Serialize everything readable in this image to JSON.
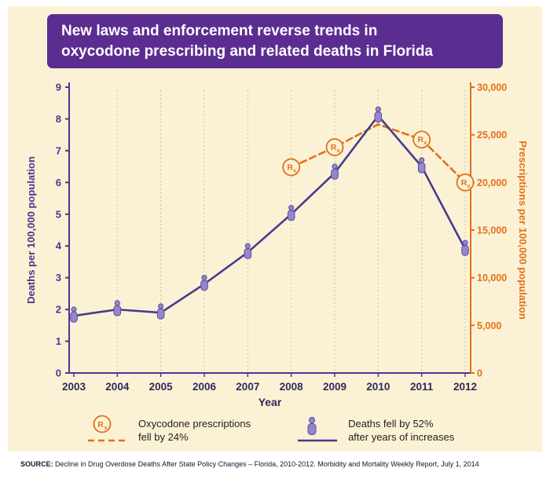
{
  "title": {
    "line1": "New laws and enforcement reverse trends in",
    "line2": "oxycodone prescribing and related deaths in Florida"
  },
  "chart_data": {
    "type": "line",
    "x": [
      2003,
      2004,
      2005,
      2006,
      2007,
      2008,
      2009,
      2010,
      2011,
      2012
    ],
    "xlabel": "Year",
    "left_axis": {
      "label": "Deaths per 100,000 population",
      "min": 0,
      "max": 9,
      "tick_step": 1
    },
    "right_axis": {
      "label": "Prescriptions per 100,000 population",
      "min": 0,
      "max": 30000,
      "tick_step": 5000
    },
    "grid": "vertical-dotted",
    "series": [
      {
        "name": "Deaths per 100,000 population",
        "axis": "left",
        "line": "solid",
        "marker": "person",
        "values": [
          1.8,
          2.0,
          1.9,
          2.8,
          3.8,
          5.0,
          6.3,
          8.1,
          6.5,
          3.9
        ]
      },
      {
        "name": "Oxycodone prescriptions per 100,000 population",
        "axis": "right",
        "line": "dashed",
        "marker": "rx",
        "values": [
          null,
          null,
          null,
          null,
          null,
          21600,
          23700,
          26100,
          24500,
          20000
        ],
        "marker_years": [
          2008,
          2009,
          2011,
          2012
        ]
      }
    ]
  },
  "legend": {
    "prescriptions": {
      "line1": "Oxycodone prescriptions",
      "line2": "fell by 24%"
    },
    "deaths": {
      "line1": "Deaths fell by 52%",
      "line2": "after years of increases"
    }
  },
  "source": {
    "label": "SOURCE:",
    "text": " Decline in Drug Overdose Deaths After State Policy Changes – Florida, 2010-2012. Morbidity and Mortality Weekly Report, July 1, 2014"
  },
  "colors": {
    "cream": "#FBF2D5",
    "purple": "#5C2D91",
    "orange": "#E2701B",
    "line_purple": "#473B8F",
    "marker_fill": "#9486C9",
    "marker_stroke": "#5B4EA4",
    "grid": "#CFC49E",
    "year": "#33295C"
  }
}
